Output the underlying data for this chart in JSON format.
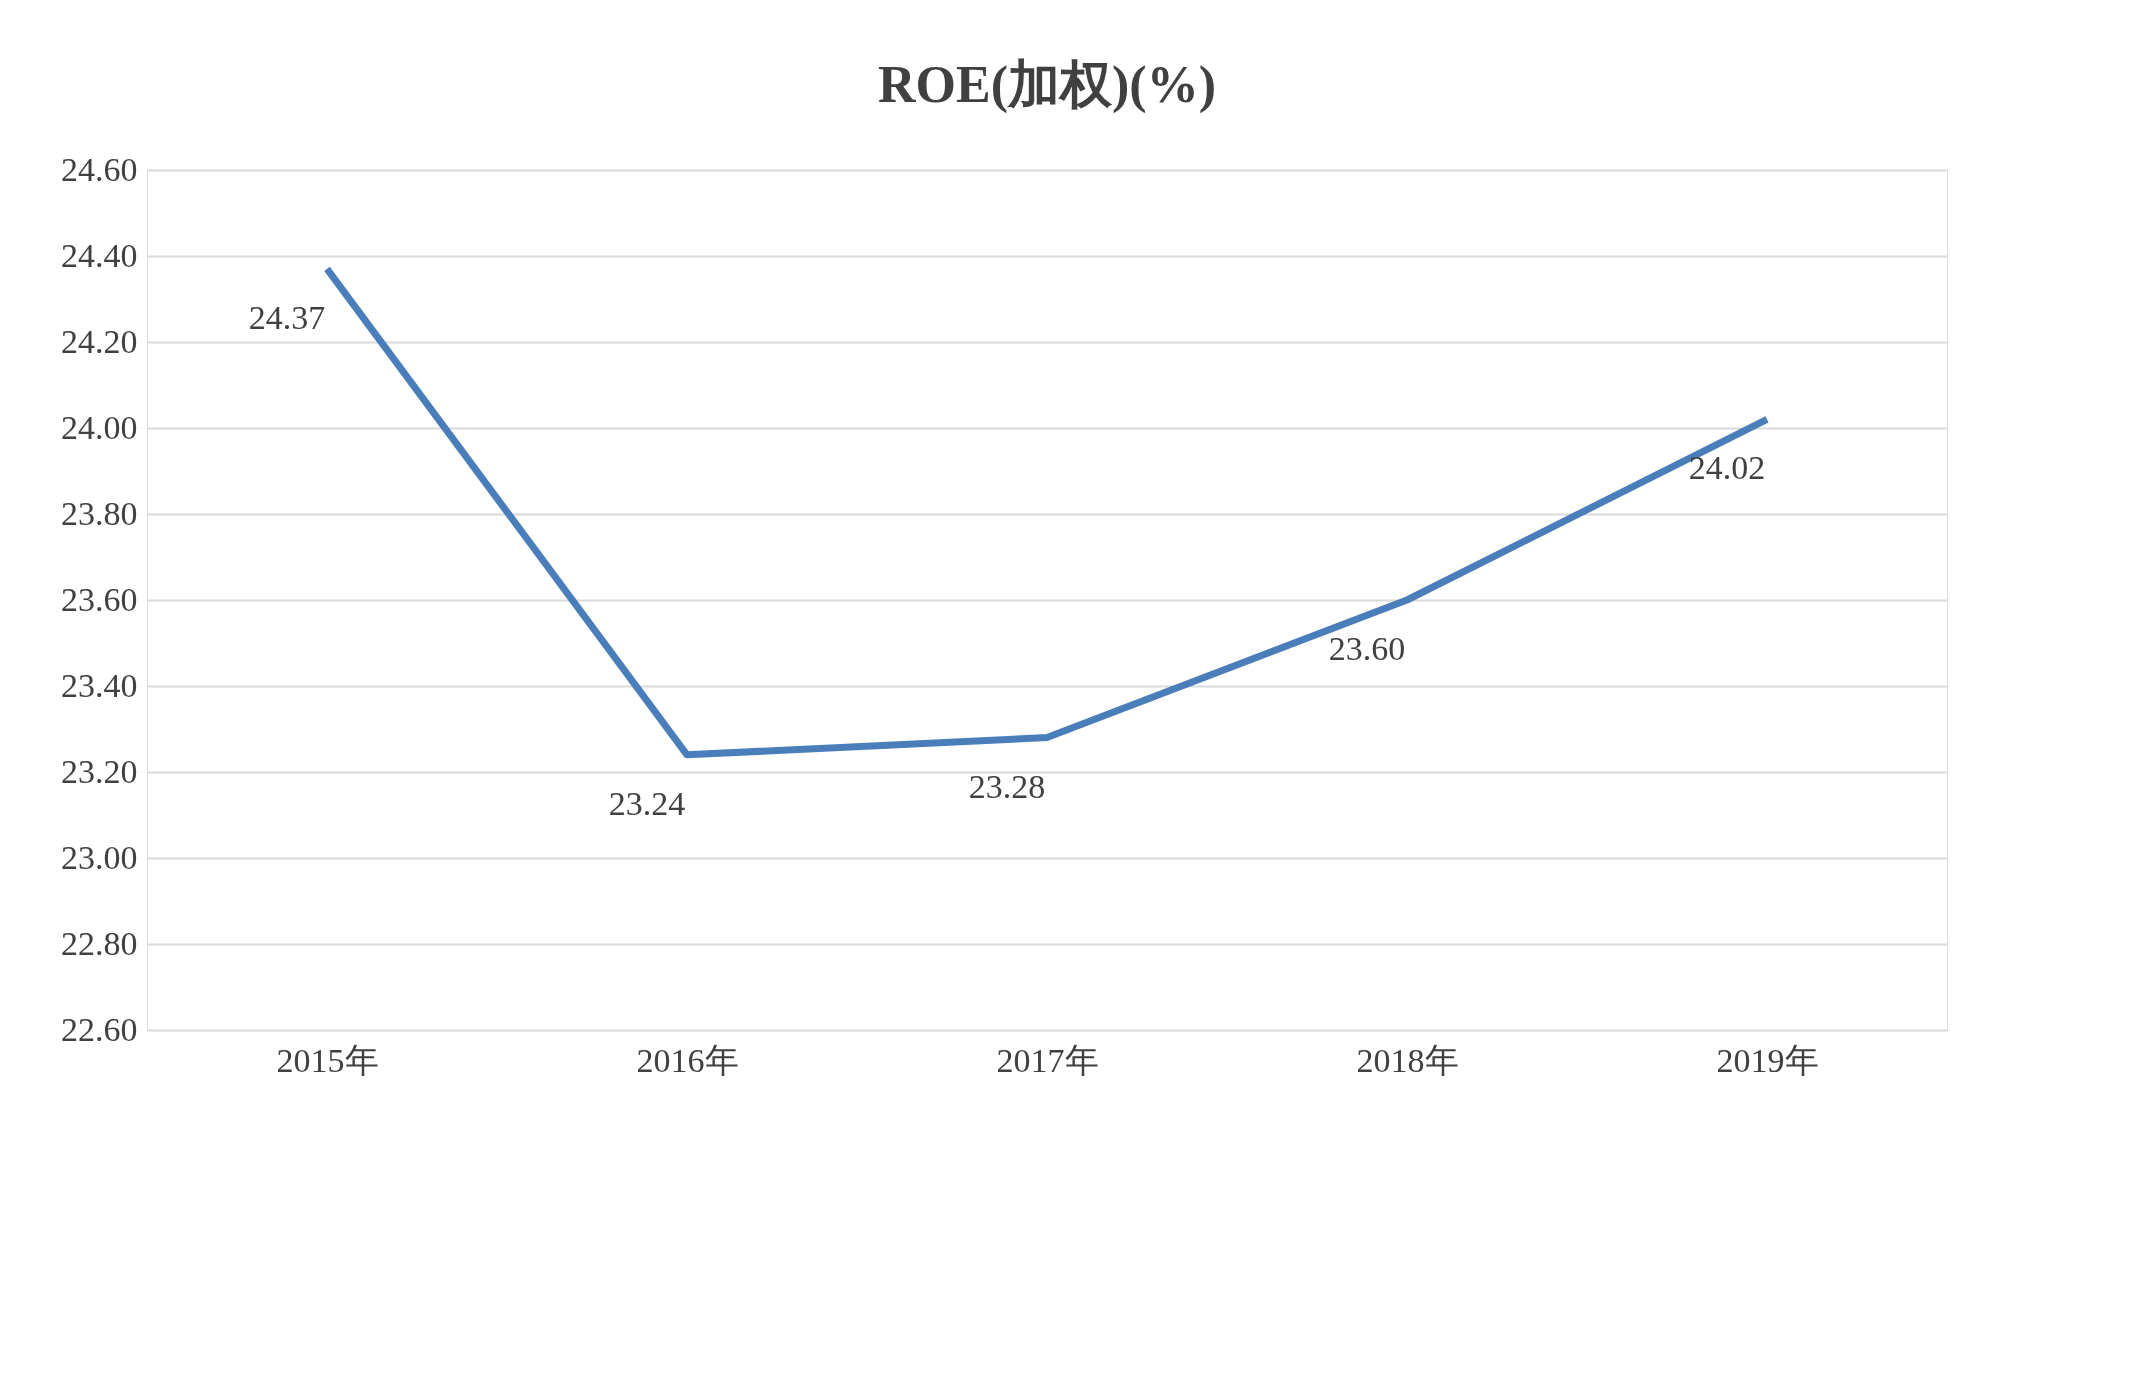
{
  "chart_data": {
    "type": "line",
    "title": "ROE(加权)(%)",
    "categories": [
      "2015年",
      "2016年",
      "2017年",
      "2018年",
      "2019年"
    ],
    "series": [
      {
        "color": "#4a7ebb",
        "values": [
          24.37,
          23.24,
          23.28,
          23.6,
          24.02
        ],
        "value_labels": [
          "24.37",
          "23.24",
          "23.28",
          "23.60",
          "24.02"
        ]
      }
    ],
    "ylim": [
      22.6,
      24.6
    ],
    "yticks": [
      {
        "value": 22.6,
        "label": "22.60"
      },
      {
        "value": 22.8,
        "label": "22.80"
      },
      {
        "value": 23.0,
        "label": "23.00"
      },
      {
        "value": 23.2,
        "label": "23.20"
      },
      {
        "value": 23.4,
        "label": "23.40"
      },
      {
        "value": 23.6,
        "label": "23.60"
      },
      {
        "value": 23.8,
        "label": "23.80"
      },
      {
        "value": 24.0,
        "label": "24.00"
      },
      {
        "value": 24.2,
        "label": "24.20"
      },
      {
        "value": 24.4,
        "label": "24.40"
      },
      {
        "value": 24.6,
        "label": "24.60"
      }
    ],
    "grid": "y",
    "legend": false,
    "marker": "none",
    "line_style": "solid"
  }
}
